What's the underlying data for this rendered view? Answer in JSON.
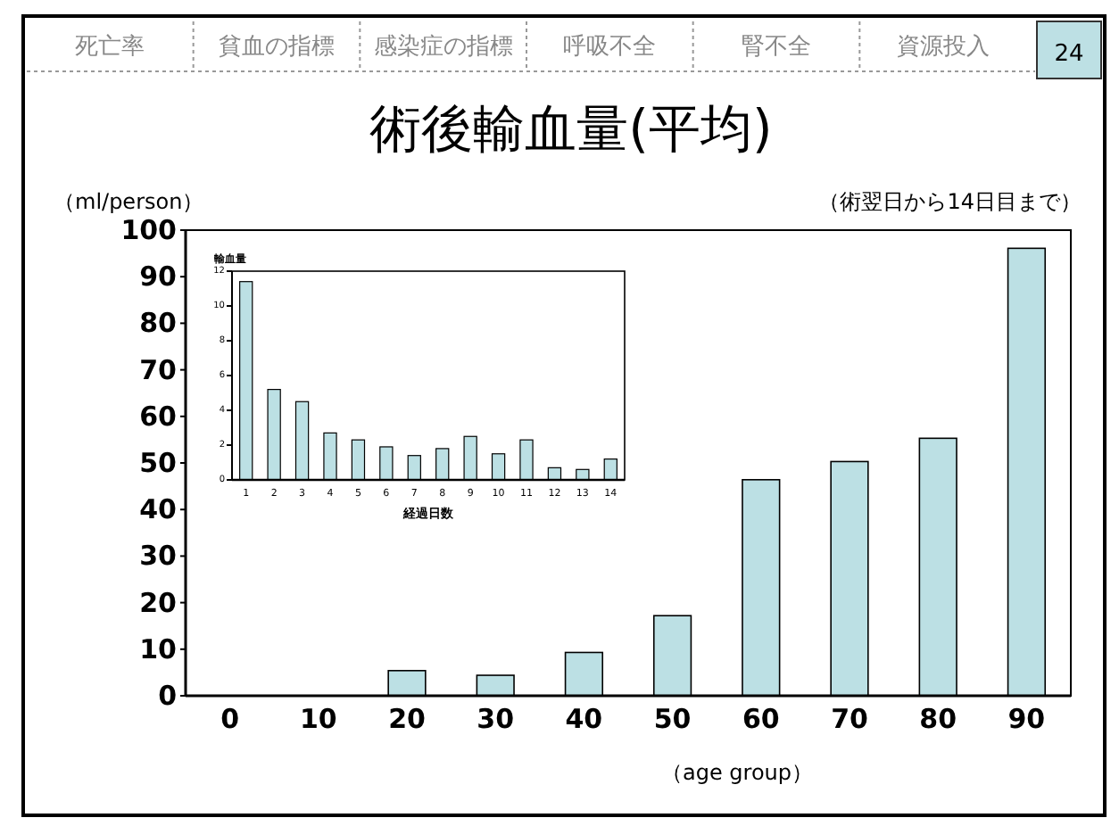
{
  "chart_data": [
    {
      "type": "bar",
      "title": "術後輸血量(平均)",
      "subtitle": "（術翌日から14日目まで）",
      "ylabel": "（ml/person）",
      "xlabel": "（age group）",
      "categories": [
        "0",
        "10",
        "20",
        "30",
        "40",
        "50",
        "60",
        "70",
        "80",
        "90"
      ],
      "series": [
        {
          "color": "#bce0e4",
          "values": [
            0,
            0,
            5.4,
            4.4,
            9.3,
            17.2,
            46.4,
            50.3,
            55.3,
            96.1
          ]
        }
      ],
      "ylim": [
        0,
        100
      ],
      "yticks": [
        0,
        10,
        20,
        30,
        40,
        50,
        60,
        70,
        80,
        90,
        100
      ],
      "annotations": [
        "死亡率",
        "貧血の指標",
        "感染症の指標",
        "呼吸不全",
        "腎不全",
        "資源投入",
        "24"
      ]
    },
    {
      "type": "bar",
      "ylabel": "輸血量",
      "xlabel": "経過日数",
      "categories": [
        "1",
        "2",
        "3",
        "4",
        "5",
        "6",
        "7",
        "8",
        "9",
        "10",
        "11",
        "12",
        "13",
        "14"
      ],
      "series": [
        {
          "color": "#bce0e4",
          "values": [
            11.4,
            5.2,
            4.5,
            2.7,
            2.3,
            1.9,
            1.4,
            1.8,
            2.5,
            1.5,
            2.3,
            0.7,
            0.6,
            1.2
          ]
        }
      ],
      "ylim": [
        0,
        12
      ],
      "yticks": [
        0,
        2,
        4,
        6,
        8,
        10,
        12
      ]
    }
  ]
}
